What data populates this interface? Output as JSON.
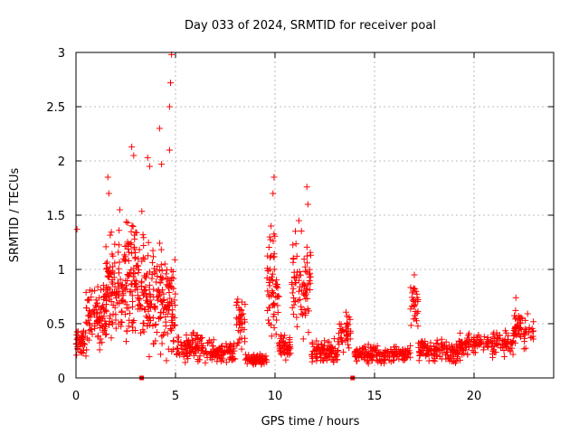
{
  "chart_data": {
    "type": "scatter",
    "title": "Day 033 of 2024, SRMTID for receiver poal",
    "xlabel": "GPS time / hours",
    "ylabel": "SRMTID / TECUs",
    "xlim": [
      0,
      24
    ],
    "ylim": [
      0,
      3
    ],
    "xticks": [
      0,
      5,
      10,
      15,
      20
    ],
    "yticks": [
      0,
      0.5,
      1,
      1.5,
      2,
      2.5,
      3
    ],
    "xtick_labels": [
      "0",
      "5",
      "10",
      "15",
      "20"
    ],
    "ytick_labels": [
      "0",
      "0.5",
      "1",
      "1.5",
      "2",
      "2.5",
      "3"
    ],
    "grid": true,
    "marker": "+",
    "marker_color": "#ff0000",
    "series_profile": [
      {
        "t": [
          0.0,
          0.5
        ],
        "level": 0.32,
        "spread": 0.16,
        "n": 40
      },
      {
        "t": [
          0.5,
          1.5
        ],
        "level": 0.55,
        "spread": 0.35,
        "n": 90
      },
      {
        "t": [
          1.5,
          2.5
        ],
        "level": 0.85,
        "spread": 0.55,
        "n": 110
      },
      {
        "t": [
          2.5,
          3.5
        ],
        "level": 0.9,
        "spread": 0.7,
        "n": 110
      },
      {
        "t": [
          3.5,
          4.5
        ],
        "level": 0.7,
        "spread": 0.6,
        "n": 100
      },
      {
        "t": [
          4.5,
          5.0
        ],
        "level": 0.65,
        "spread": 0.55,
        "n": 60
      },
      {
        "t": [
          5.0,
          6.5
        ],
        "level": 0.28,
        "spread": 0.15,
        "n": 90
      },
      {
        "t": [
          6.5,
          8.0
        ],
        "level": 0.24,
        "spread": 0.13,
        "n": 90
      },
      {
        "t": [
          8.0,
          8.5
        ],
        "level": 0.5,
        "spread": 0.3,
        "n": 40
      },
      {
        "t": [
          8.5,
          9.6
        ],
        "level": 0.17,
        "spread": 0.06,
        "n": 70
      },
      {
        "t": [
          9.6,
          10.2
        ],
        "level": 0.9,
        "spread": 0.6,
        "n": 60
      },
      {
        "t": [
          10.2,
          10.8
        ],
        "level": 0.28,
        "spread": 0.14,
        "n": 50
      },
      {
        "t": [
          10.8,
          11.8
        ],
        "level": 0.85,
        "spread": 0.55,
        "n": 80
      },
      {
        "t": [
          11.8,
          13.2
        ],
        "level": 0.25,
        "spread": 0.13,
        "n": 90
      },
      {
        "t": [
          13.2,
          13.8
        ],
        "level": 0.42,
        "spread": 0.2,
        "n": 40
      },
      {
        "t": [
          14.0,
          16.8
        ],
        "level": 0.22,
        "spread": 0.1,
        "n": 160
      },
      {
        "t": [
          16.8,
          17.2
        ],
        "level": 0.7,
        "spread": 0.25,
        "n": 30
      },
      {
        "t": [
          17.2,
          19.3
        ],
        "level": 0.25,
        "spread": 0.12,
        "n": 130
      },
      {
        "t": [
          19.3,
          22.0
        ],
        "level": 0.32,
        "spread": 0.14,
        "n": 150
      },
      {
        "t": [
          22.0,
          23.0
        ],
        "level": 0.45,
        "spread": 0.2,
        "n": 60
      }
    ],
    "peaks": [
      {
        "x": 0.05,
        "y": 1.37
      },
      {
        "x": 1.6,
        "y": 1.85
      },
      {
        "x": 1.65,
        "y": 1.7
      },
      {
        "x": 2.2,
        "y": 1.55
      },
      {
        "x": 2.8,
        "y": 2.13
      },
      {
        "x": 2.9,
        "y": 2.05
      },
      {
        "x": 3.6,
        "y": 2.03
      },
      {
        "x": 3.7,
        "y": 1.95
      },
      {
        "x": 4.2,
        "y": 2.3
      },
      {
        "x": 4.3,
        "y": 1.97
      },
      {
        "x": 4.8,
        "y": 2.98
      },
      {
        "x": 4.75,
        "y": 2.72
      },
      {
        "x": 4.7,
        "y": 2.5
      },
      {
        "x": 4.7,
        "y": 2.1
      },
      {
        "x": 9.95,
        "y": 1.85
      },
      {
        "x": 9.9,
        "y": 1.7
      },
      {
        "x": 9.8,
        "y": 1.4
      },
      {
        "x": 11.6,
        "y": 1.76
      },
      {
        "x": 11.65,
        "y": 1.6
      },
      {
        "x": 11.2,
        "y": 1.45
      },
      {
        "x": 17.0,
        "y": 0.95
      },
      {
        "x": 22.1,
        "y": 0.74
      }
    ],
    "zero_markers": [
      {
        "x": 3.3,
        "y": 0.0
      },
      {
        "x": 13.9,
        "y": 0.0
      }
    ]
  }
}
